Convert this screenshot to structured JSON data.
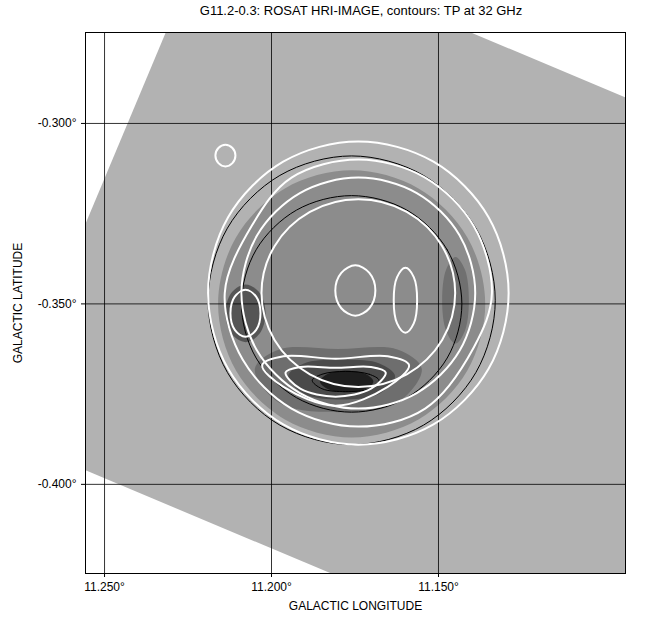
{
  "chart_data": {
    "type": "image_contour",
    "title": "G11.2-0.3: ROSAT HRI-IMAGE, contours: TP at 32 GHz",
    "x_label": "GALACTIC LONGITUDE",
    "y_label": "GALACTIC LATITUDE",
    "xlim": [
      11.2557,
      11.094
    ],
    "ylim": [
      -0.4247,
      -0.2748
    ],
    "xticks": [
      {
        "value": 11.25,
        "label": "11.250°"
      },
      {
        "value": 11.2,
        "label": "11.200°"
      },
      {
        "value": 11.15,
        "label": "11.150°"
      }
    ],
    "yticks": [
      {
        "value": -0.3,
        "label": "-0.300°"
      },
      {
        "value": -0.35,
        "label": "-0.350°"
      },
      {
        "value": -0.4,
        "label": "-0.400°"
      }
    ],
    "grid": true,
    "field": {
      "color": "#b2b2b2",
      "lon": [
        11.218,
        10.961,
        11.025,
        11.282
      ],
      "lat": [
        -0.2446,
        -0.3445,
        -0.4857,
        -0.3859
      ]
    },
    "image": [
      {
        "color": "#8c8c8c",
        "lon": [
          11.136,
          11.1414,
          11.156,
          11.176,
          11.196,
          11.2106,
          11.216,
          11.2106,
          11.196,
          11.176,
          11.156,
          11.1414
        ],
        "lat": [
          -0.35,
          -0.3315,
          -0.318,
          -0.313,
          -0.318,
          -0.3315,
          -0.35,
          -0.3685,
          -0.382,
          -0.387,
          -0.382,
          -0.3685
        ]
      },
      {
        "color": "#6e6e6e",
        "lon": [
          11.155,
          11.1623,
          11.18,
          11.1977,
          11.205,
          11.1977,
          11.18,
          11.1623
        ],
        "lat": [
          -0.368,
          -0.3626,
          -0.3625,
          -0.3626,
          -0.368,
          -0.3774,
          -0.38,
          -0.3774
        ]
      },
      {
        "color": "#707070",
        "lon": [
          11.1409,
          11.1421,
          11.1449,
          11.1477,
          11.1489,
          11.1477,
          11.1449,
          11.1421
        ],
        "lat": [
          -0.349,
          -0.3405,
          -0.337,
          -0.3405,
          -0.349,
          -0.3575,
          -0.361,
          -0.3575
        ]
      },
      {
        "color": "#555555",
        "lon": [
          11.2018,
          11.2036,
          11.2078,
          11.212,
          11.2138,
          11.212,
          11.2078,
          11.2036
        ],
        "lat": [
          -0.3526,
          -0.3469,
          -0.3446,
          -0.3469,
          -0.3526,
          -0.3583,
          -0.3606,
          -0.3583
        ]
      },
      {
        "color": "#4a4a4a",
        "lon": [
          11.163,
          11.1677,
          11.179,
          11.1903,
          11.195,
          11.1903,
          11.179,
          11.1677
        ],
        "lat": [
          -0.37,
          -0.3665,
          -0.3655,
          -0.3665,
          -0.37,
          -0.3749,
          -0.3765,
          -0.3749
        ]
      },
      {
        "color": "#1e1e1e",
        "lon": [
          11.1695,
          11.1718,
          11.1775,
          11.1832,
          11.1855,
          11.1832,
          11.1775,
          11.1718
        ],
        "lat": [
          -0.3715,
          -0.3694,
          -0.3685,
          -0.3694,
          -0.3715,
          -0.3736,
          -0.3745,
          -0.3736
        ]
      }
    ],
    "contours": [
      {
        "color": "#000000",
        "lon": [
          11.133,
          11.1388,
          11.1545,
          11.176,
          11.1975,
          11.2132,
          11.219,
          11.2132,
          11.1975,
          11.176,
          11.1545,
          11.1388
        ],
        "lat": [
          -0.349,
          -0.329,
          -0.3144,
          -0.309,
          -0.3144,
          -0.329,
          -0.349,
          -0.369,
          -0.3836,
          -0.389,
          -0.3836,
          -0.369
        ]
      },
      {
        "color": "#000000",
        "lon": [
          11.143,
          11.1474,
          11.1595,
          11.176,
          11.1925,
          11.2046,
          11.209,
          11.2046,
          11.1925,
          11.176,
          11.1595,
          11.1474
        ],
        "lat": [
          -0.35,
          -0.335,
          -0.324,
          -0.32,
          -0.324,
          -0.335,
          -0.35,
          -0.365,
          -0.376,
          -0.38,
          -0.376,
          -0.365
        ]
      },
      {
        "color": "#000000",
        "lon": [
          11.1678,
          11.1707,
          11.1778,
          11.1849,
          11.1878,
          11.1849,
          11.1778,
          11.1707
        ],
        "lat": [
          -0.3712,
          -0.3695,
          -0.3687,
          -0.3695,
          -0.3712,
          -0.3735,
          -0.3743,
          -0.3735
        ]
      },
      {
        "color": "#ffffff",
        "lon": [
          11.129,
          11.135,
          11.1515,
          11.174,
          11.1965,
          11.213,
          11.219,
          11.213,
          11.1965,
          11.174,
          11.1515,
          11.135
        ],
        "lat": [
          -0.347,
          -0.326,
          -0.3106,
          -0.305,
          -0.3106,
          -0.326,
          -0.347,
          -0.368,
          -0.3834,
          -0.389,
          -0.3834,
          -0.368
        ]
      },
      {
        "color": "#ffffff",
        "lon": [
          11.134,
          11.1394,
          11.154,
          11.174,
          11.194,
          11.206,
          11.214,
          11.2086,
          11.194,
          11.174,
          11.154,
          11.1394
        ],
        "lat": [
          -0.347,
          -0.3285,
          -0.315,
          -0.31,
          -0.315,
          -0.3285,
          -0.347,
          -0.3655,
          -0.379,
          -0.384,
          -0.379,
          -0.362
        ]
      },
      {
        "color": "#ffffff",
        "lon": [
          11.139,
          11.1437,
          11.1565,
          11.174,
          11.1915,
          11.2043,
          11.209,
          11.2043,
          11.1915,
          11.174,
          11.1565,
          11.1437
        ],
        "lat": [
          -0.347,
          -0.331,
          -0.3193,
          -0.315,
          -0.3193,
          -0.331,
          -0.347,
          -0.363,
          -0.3747,
          -0.379,
          -0.3747,
          -0.363
        ]
      },
      {
        "color": "#ffffff",
        "lon": [
          11.145,
          11.1489,
          11.1595,
          11.174,
          11.1885,
          11.1991,
          11.203,
          11.1991,
          11.1885,
          11.174,
          11.1595,
          11.1489
        ],
        "lat": [
          -0.347,
          -0.334,
          -0.3245,
          -0.321,
          -0.3245,
          -0.334,
          -0.347,
          -0.36,
          -0.3695,
          -0.373,
          -0.3695,
          -0.36
        ]
      },
      {
        "color": "#ffffff",
        "lon": [
          11.1588,
          11.1652,
          11.1808,
          11.1964,
          11.2028,
          11.1964,
          11.1808,
          11.1652
        ],
        "lat": [
          -0.367,
          -0.3645,
          -0.3652,
          -0.3645,
          -0.367,
          -0.373,
          -0.3782,
          -0.373
        ]
      },
      {
        "color": "#ffffff",
        "lon": [
          11.1658,
          11.1702,
          11.1808,
          11.1914,
          11.1958,
          11.1914,
          11.1808,
          11.1702
        ],
        "lat": [
          -0.369,
          -0.3675,
          -0.3677,
          -0.3675,
          -0.369,
          -0.3735,
          -0.3757,
          -0.3735
        ]
      },
      {
        "color": "#ffffff",
        "lon": [
          11.2033,
          11.2046,
          11.2078,
          11.211,
          11.2123,
          11.211,
          11.2078,
          11.2046
        ],
        "lat": [
          -0.3526,
          -0.348,
          -0.3461,
          -0.348,
          -0.3526,
          -0.3572,
          -0.3591,
          -0.3572
        ]
      },
      {
        "color": "#ffffff",
        "lon": [
          11.2108,
          11.2117,
          11.2138,
          11.2159,
          11.2168,
          11.2159,
          11.2138,
          11.2117
        ],
        "lat": [
          -0.3089,
          -0.3068,
          -0.3059,
          -0.3068,
          -0.3089,
          -0.311,
          -0.3119,
          -0.311
        ]
      },
      {
        "color": "#ffffff",
        "lon": [
          11.1689,
          11.1707,
          11.1749,
          11.1791,
          11.1809,
          11.1791,
          11.1749,
          11.1707
        ],
        "lat": [
          -0.3463,
          -0.3414,
          -0.3393,
          -0.3414,
          -0.3463,
          -0.3512,
          -0.3533,
          -0.3512
        ]
      },
      {
        "color": "#ffffff",
        "lon": [
          11.1564,
          11.1574,
          11.1599,
          11.1624,
          11.1634,
          11.1624,
          11.1599,
          11.1574
        ],
        "lat": [
          -0.349,
          -0.3426,
          -0.34,
          -0.3426,
          -0.349,
          -0.3554,
          -0.358,
          -0.3554
        ]
      }
    ]
  }
}
